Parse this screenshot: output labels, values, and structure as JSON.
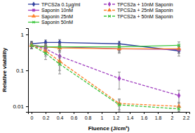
{
  "chart_data": {
    "type": "line",
    "x_label": "Fluence (J/cm²)",
    "y_label": "Relative viability",
    "log": "y",
    "grid": false,
    "legend": "top",
    "x": [
      0,
      0.2,
      0.4,
      1.25,
      2.1
    ],
    "xlim": [
      -0.05,
      2.25
    ],
    "xticks": [
      0,
      0.2,
      0.4,
      0.6,
      0.8,
      1,
      1.2,
      1.4,
      1.6,
      1.8,
      2,
      2.2
    ],
    "ylim": [
      0.007,
      1.5
    ],
    "yticks": [
      0.01,
      0.1,
      1
    ],
    "series": [
      {
        "name": "TPCS2a 0.1µg/ml",
        "color": "#2e3f9e",
        "marker": "diamond",
        "line_style": "solid",
        "values": [
          0.55,
          0.6,
          0.6,
          0.55,
          0.35
        ],
        "errors": [
          0.1,
          0.1,
          0.12,
          0.1,
          0.1
        ]
      },
      {
        "name": "Saponin 10nM",
        "color": "#a040c0",
        "marker": "square",
        "line_style": "solid",
        "values": [
          0.5,
          0.45,
          0.45,
          0.4,
          0.38
        ],
        "errors": [
          0.1,
          0.08,
          0.1,
          0.1,
          0.08
        ]
      },
      {
        "name": "Saponin 25nM",
        "color": "#ff7f27",
        "marker": "triangle",
        "line_style": "solid",
        "values": [
          0.5,
          0.45,
          0.42,
          0.4,
          0.4
        ],
        "errors": [
          0.1,
          0.1,
          0.1,
          0.08,
          0.1
        ]
      },
      {
        "name": "Saponin 50nM",
        "color": "#3cc63c",
        "marker": "x",
        "line_style": "solid",
        "values": [
          0.5,
          0.45,
          0.45,
          0.45,
          0.5
        ],
        "errors": [
          0.1,
          0.1,
          0.1,
          0.1,
          0.12
        ]
      },
      {
        "name": "TPCS2a + 10nM Saponin",
        "color": "#a040c0",
        "marker": "diamond",
        "line_style": "dashed",
        "values": [
          0.5,
          0.4,
          0.25,
          0.06,
          0.02
        ],
        "errors": [
          0.1,
          0.1,
          0.1,
          0.03,
          0.008
        ]
      },
      {
        "name": "TPCS2a + 25nM Saponin",
        "color": "#ff7f27",
        "marker": "triangle",
        "line_style": "dashed",
        "values": [
          0.5,
          0.35,
          0.18,
          0.012,
          0.01
        ],
        "errors": [
          0.1,
          0.1,
          0.08,
          0.004,
          0.003
        ]
      },
      {
        "name": "TPCS2a + 50nM Saponin",
        "color": "#3cc63c",
        "marker": "x",
        "line_style": "dashed",
        "values": [
          0.5,
          0.3,
          0.15,
          0.011,
          0.0085
        ],
        "errors": [
          0.1,
          0.1,
          0.07,
          0.004,
          0.0015
        ]
      }
    ]
  }
}
